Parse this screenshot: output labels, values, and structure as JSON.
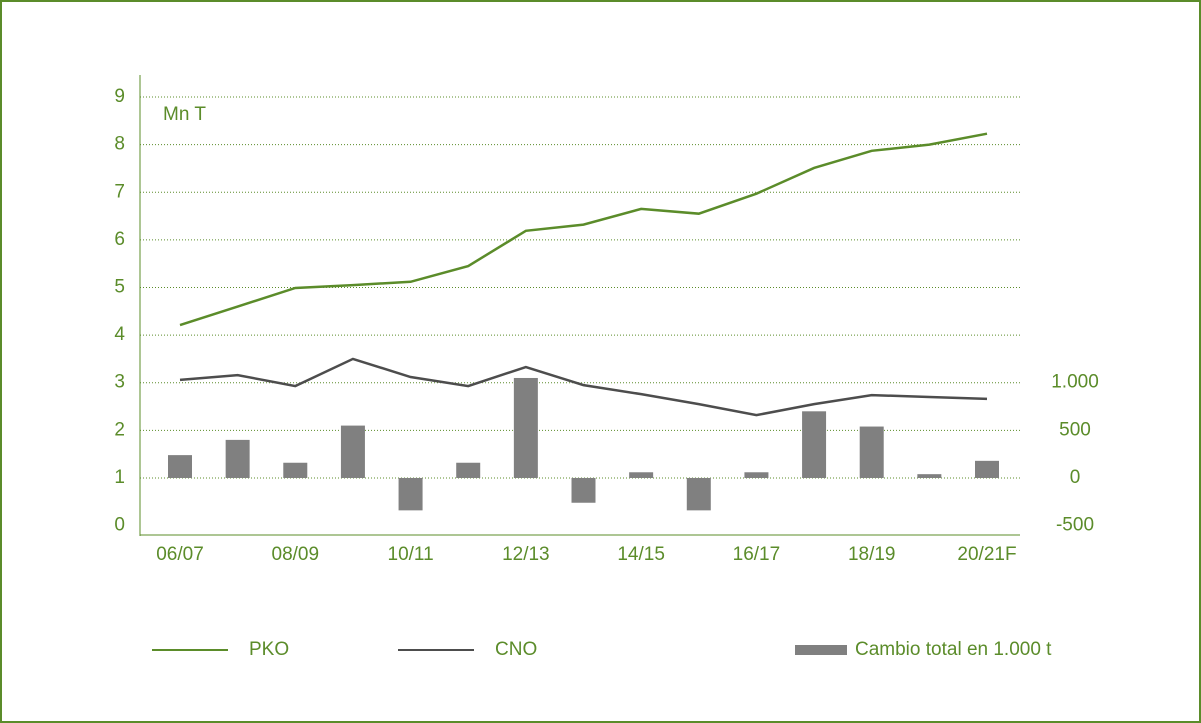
{
  "chart_data": {
    "type": "line",
    "annotation": "Mn T",
    "categories": [
      "06/07",
      null,
      "08/09",
      null,
      "10/11",
      null,
      "12/13",
      null,
      "14/15",
      null,
      "16/17",
      null,
      "18/19",
      null,
      "20/21F"
    ],
    "series": [
      {
        "name": "PKO",
        "color": "#5b8c2a",
        "type": "line",
        "values": [
          4.21,
          4.6,
          4.99,
          5.05,
          5.12,
          5.45,
          6.19,
          6.32,
          6.65,
          6.55,
          6.97,
          7.51,
          7.87,
          8.0,
          8.23
        ]
      },
      {
        "name": "CNO",
        "color": "#4d4d4d",
        "type": "line",
        "values": [
          3.06,
          3.16,
          2.93,
          3.5,
          3.12,
          2.93,
          3.33,
          2.95,
          2.76,
          2.55,
          2.32,
          2.55,
          2.74,
          2.7,
          2.66
        ]
      },
      {
        "name": "Cambio total en 1.000 t",
        "color": "#808080",
        "type": "bar",
        "axis": "y2",
        "values": [
          240,
          400,
          160,
          550,
          -340,
          160,
          1050,
          -260,
          60,
          -340,
          60,
          700,
          540,
          40,
          180
        ]
      }
    ],
    "ylim": [
      0,
      9
    ],
    "yticks": [
      0,
      1,
      2,
      3,
      4,
      5,
      6,
      7,
      8,
      9
    ],
    "y2lim": [
      -500,
      4000
    ],
    "y2ticks": [
      -500,
      0,
      500,
      {
        "value": 1000,
        "label": "1.000"
      }
    ],
    "grid": true,
    "legend": "bottom"
  }
}
